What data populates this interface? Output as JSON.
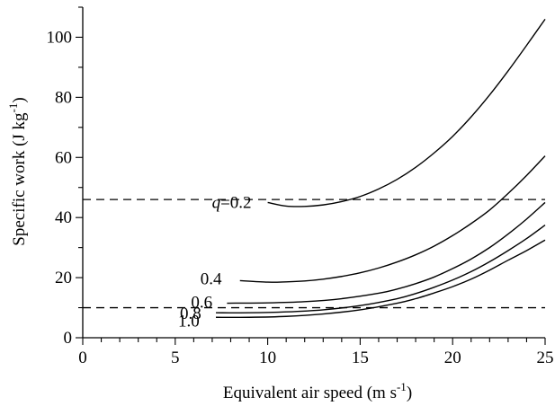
{
  "chart_data": {
    "type": "line",
    "title": "",
    "xlabel": "Equivalent air speed (m s",
    "xlabel_sup": "-1",
    "xlabel_end": ")",
    "ylabel": "Specific work (J kg",
    "ylabel_sup": "-1",
    "ylabel_end": ")",
    "xlim": [
      0,
      25
    ],
    "ylim": [
      0,
      110
    ],
    "xticks": [
      0,
      5,
      10,
      15,
      20,
      25
    ],
    "yticks": [
      0,
      20,
      40,
      60,
      80,
      100
    ],
    "x_minor_step": 1,
    "y_minor_step": 10,
    "grid": false,
    "reference_lines": [
      {
        "y": 46,
        "style": "dashed"
      },
      {
        "y": 10,
        "style": "dashed"
      }
    ],
    "series": [
      {
        "label_var": "q",
        "label_text": "=0.2",
        "x": [
          10.0,
          11.0,
          12.0,
          13.0,
          14.0,
          15.0,
          16.0,
          17.0,
          18.0,
          19.0,
          20.0,
          21.0,
          22.0,
          23.0,
          24.0,
          25.0
        ],
        "y": [
          45.0,
          43.8,
          43.7,
          44.2,
          45.3,
          47.0,
          49.5,
          52.7,
          56.7,
          61.5,
          67.0,
          73.5,
          80.8,
          88.8,
          97.3,
          106.0
        ]
      },
      {
        "label_var": "",
        "label_text": "0.4",
        "x": [
          8.5,
          10.0,
          11.0,
          12.0,
          13.0,
          14.0,
          15.0,
          16.0,
          17.0,
          18.0,
          19.0,
          20.0,
          21.0,
          22.0,
          23.0,
          24.0,
          25.0
        ],
        "y": [
          19.0,
          18.5,
          18.6,
          18.9,
          19.5,
          20.4,
          21.6,
          23.2,
          25.2,
          27.6,
          30.5,
          34.0,
          38.0,
          42.5,
          48.0,
          54.0,
          60.5
        ]
      },
      {
        "label_var": "",
        "label_text": "0.6",
        "x": [
          7.8,
          10.0,
          12.0,
          14.0,
          16.0,
          17.0,
          18.0,
          19.0,
          20.0,
          21.0,
          22.0,
          23.0,
          24.0,
          25.0
        ],
        "y": [
          11.5,
          11.6,
          12.0,
          13.0,
          14.8,
          16.2,
          18.0,
          20.2,
          23.0,
          26.2,
          30.0,
          34.5,
          39.5,
          45.0
        ]
      },
      {
        "label_var": "",
        "label_text": "0.8",
        "x": [
          7.2,
          9.0,
          11.0,
          13.0,
          15.0,
          17.0,
          18.0,
          19.0,
          20.0,
          21.0,
          22.0,
          23.0,
          24.0,
          25.0
        ],
        "y": [
          8.3,
          8.3,
          8.6,
          9.3,
          10.7,
          13.0,
          14.7,
          16.8,
          19.2,
          22.0,
          25.3,
          29.0,
          33.0,
          37.5
        ]
      },
      {
        "label_var": "",
        "label_text": "1.0",
        "x": [
          7.2,
          9.0,
          11.0,
          13.0,
          15.0,
          17.0,
          18.0,
          19.0,
          20.0,
          21.0,
          22.0,
          23.0,
          24.0,
          25.0
        ],
        "y": [
          6.8,
          6.8,
          7.1,
          7.9,
          9.3,
          11.5,
          13.0,
          14.9,
          17.0,
          19.5,
          22.5,
          25.8,
          29.0,
          32.5
        ]
      }
    ]
  }
}
